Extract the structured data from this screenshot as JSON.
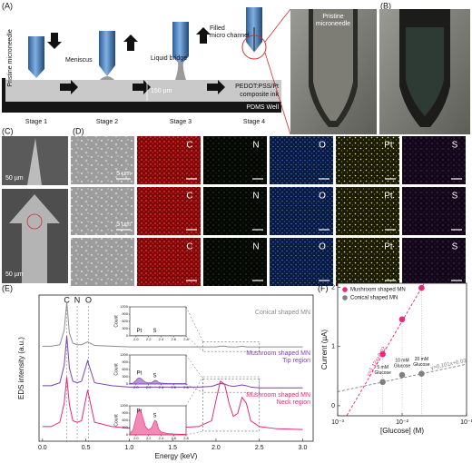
{
  "panel_a": {
    "label": "(A)",
    "pristine": "Pristine microneedle",
    "meniscus": "Meniscus",
    "liquid_bridge": "Liquid bridge",
    "filled": [
      "Filled",
      "micro channel"
    ],
    "gap": "150 µm",
    "ink": [
      "PEDOT:PSS/Pt",
      "composite ink"
    ],
    "well": "PDMS Well",
    "stages": [
      "Stage 1",
      "Stage 2",
      "Stage 3",
      "Stage 4"
    ],
    "photo_label": [
      "Pristine",
      "microneedle"
    ]
  },
  "panel_b": {
    "label": "(B)"
  },
  "panel_c": {
    "label": "(C)",
    "scale_bars": [
      "50 µm",
      "50 µm"
    ]
  },
  "panel_d": {
    "label": "(D)",
    "elements": [
      "C",
      "N",
      "O",
      "Pt",
      "S"
    ],
    "scale_bars": [
      "5 µm",
      "5 µm"
    ]
  },
  "chart_data": [
    {
      "type": "line",
      "label": "(E)",
      "x_label": "Energy (keV)",
      "y_label": "EDS intensity (a.u.)",
      "xlim": [
        -0.04,
        3.12
      ],
      "ylim": [
        0,
        10
      ],
      "xticks": [
        {
          "value": 0,
          "label": "0.0"
        },
        0.5,
        {
          "value": 1,
          "label": "1.0"
        },
        1.5,
        {
          "value": 2,
          "label": "2.0"
        },
        2.5,
        {
          "value": 3,
          "label": "3.0"
        }
      ],
      "peaks": [
        {
          "label": "C",
          "value": 0.28
        },
        {
          "label": "N",
          "value": 0.4
        },
        {
          "label": "O",
          "value": 0.53
        }
      ],
      "x": [
        0.0,
        0.1,
        0.2,
        0.25,
        0.28,
        0.31,
        0.35,
        0.4,
        0.45,
        0.52,
        0.6,
        0.8,
        1.0,
        1.2,
        1.4,
        1.6,
        1.8,
        1.95,
        2.0,
        2.05,
        2.1,
        2.15,
        2.2,
        2.25,
        2.3,
        2.35,
        2.4,
        2.5,
        2.7,
        3.0
      ],
      "series": [
        {
          "name": "Conical shaped MN",
          "color": "#8c8c8c",
          "values": [
            6.5,
            6.5,
            6.6,
            7.6,
            9.5,
            7.4,
            6.7,
            6.6,
            6.6,
            6.8,
            6.55,
            6.5,
            6.45,
            6.45,
            6.45,
            6.45,
            6.45,
            6.45,
            6.45,
            6.5,
            6.5,
            6.45,
            6.45,
            6.45,
            6.5,
            6.45,
            6.45,
            6.45,
            6.45,
            6.45
          ],
          "inset": {
            "y_label": "Count",
            "xlim": [
              1.9,
              2.8
            ],
            "ylim": [
              0,
              1200
            ],
            "xticks": [
              {
                "value": 2,
                "label": "2.0"
              },
              2.2,
              2.4,
              2.6,
              2.8
            ],
            "yticks": [
              0,
              300,
              600,
              900,
              1200
            ],
            "x": [
              1.9,
              1.95,
              2.0,
              2.02,
              2.05,
              2.08,
              2.1,
              2.15,
              2.2,
              2.25,
              2.3,
              2.33,
              2.36,
              2.4,
              2.5,
              2.6,
              2.7,
              2.8
            ],
            "values": [
              20,
              20,
              25,
              25,
              30,
              25,
              25,
              20,
              20,
              20,
              25,
              25,
              20,
              20,
              20,
              20,
              20,
              20
            ],
            "labels": [
              {
                "text": "Pt",
                "x": 2.05
              },
              {
                "text": "S",
                "x": 2.3
              }
            ]
          }
        },
        {
          "name": "Mushroom shaped MN",
          "region": "Tip region",
          "color": "#7b3fb5",
          "values": [
            3.8,
            3.8,
            4.0,
            5.2,
            7.2,
            5.0,
            4.1,
            4.0,
            4.1,
            5.5,
            4.0,
            3.8,
            3.7,
            3.7,
            3.7,
            3.7,
            3.7,
            3.75,
            3.85,
            3.95,
            3.9,
            3.8,
            3.75,
            3.8,
            3.85,
            3.8,
            3.7,
            3.65,
            3.65,
            3.65
          ],
          "inset": {
            "y_label": "Count",
            "xlim": [
              1.9,
              2.8
            ],
            "ylim": [
              0,
              1200
            ],
            "xticks": [
              {
                "value": 2,
                "label": "2.0"
              },
              2.2,
              2.4,
              2.6,
              2.8
            ],
            "yticks": [
              0,
              300,
              600,
              900,
              1200
            ],
            "x": [
              1.9,
              1.95,
              2.0,
              2.02,
              2.05,
              2.08,
              2.1,
              2.15,
              2.2,
              2.25,
              2.3,
              2.33,
              2.36,
              2.4,
              2.5,
              2.6,
              2.7,
              2.8
            ],
            "values": [
              20,
              40,
              150,
              220,
              260,
              230,
              180,
              80,
              50,
              60,
              150,
              140,
              70,
              40,
              25,
              20,
              20,
              20
            ],
            "labels": [
              {
                "text": "Pt",
                "x": 2.05
              },
              {
                "text": "S",
                "x": 2.3
              }
            ]
          }
        },
        {
          "name": "Mushroom shaped MN",
          "region": "Neck region",
          "color": "#e8287a",
          "values": [
            1.0,
            1.0,
            1.3,
            2.6,
            4.4,
            2.5,
            1.4,
            1.3,
            1.4,
            3.5,
            1.3,
            1.0,
            0.9,
            0.9,
            0.9,
            0.95,
            1.0,
            1.4,
            2.8,
            4.1,
            3.9,
            2.6,
            1.7,
            1.9,
            3.0,
            2.6,
            1.4,
            1.0,
            0.85,
            0.8
          ],
          "inset": {
            "y_label": "Count",
            "xlim": [
              1.9,
              2.8
            ],
            "ylim": [
              0,
              1200
            ],
            "xticks": [
              {
                "value": 2,
                "label": "2.0"
              },
              2.2,
              2.4,
              2.6,
              2.8
            ],
            "yticks": [
              0,
              300,
              600,
              900,
              1200
            ],
            "x": [
              1.9,
              1.95,
              2.0,
              2.02,
              2.05,
              2.08,
              2.1,
              2.15,
              2.2,
              2.25,
              2.3,
              2.33,
              2.36,
              2.4,
              2.5,
              2.6,
              2.7,
              2.8
            ],
            "values": [
              50,
              200,
              700,
              900,
              1050,
              950,
              800,
              350,
              200,
              300,
              600,
              550,
              250,
              120,
              60,
              40,
              30,
              30
            ],
            "labels": [
              {
                "text": "Pt",
                "x": 2.05
              },
              {
                "text": "S",
                "x": 2.3
              }
            ]
          }
        }
      ]
    },
    {
      "type": "scatter",
      "label": "(F)",
      "x_label": "[Glucose] (M)",
      "y_label": "Current (µA)",
      "log_x": true,
      "xlim": [
        0.001,
        0.1
      ],
      "xticks": [
        {
          "value": 0.001,
          "label": "10⁻³"
        },
        {
          "value": 0.01,
          "label": "10⁻²"
        },
        {
          "value": 0.1,
          "label": "10⁻¹"
        }
      ],
      "ylim": [
        -0.17,
        2.07
      ],
      "yticks": [
        0,
        1,
        2
      ],
      "legend": "upper left",
      "x": [
        0.005,
        0.01,
        0.02
      ],
      "series": [
        {
          "name": "Mushroom shaped MN",
          "color": "#e8287a",
          "values": [
            0.87,
            1.46,
            1.99
          ],
          "fit_label": "y=1.12x+0.02"
        },
        {
          "name": "Conical shaped MN",
          "color": "#808080",
          "values": [
            0.4,
            0.52,
            0.54
          ],
          "fit_label": "y=0.101x+0.03"
        }
      ],
      "annotations": [
        [
          "5 mM",
          "Glucose"
        ],
        [
          "10 mM",
          "Glucose"
        ],
        [
          "20 mM",
          "Glucose"
        ]
      ]
    }
  ]
}
